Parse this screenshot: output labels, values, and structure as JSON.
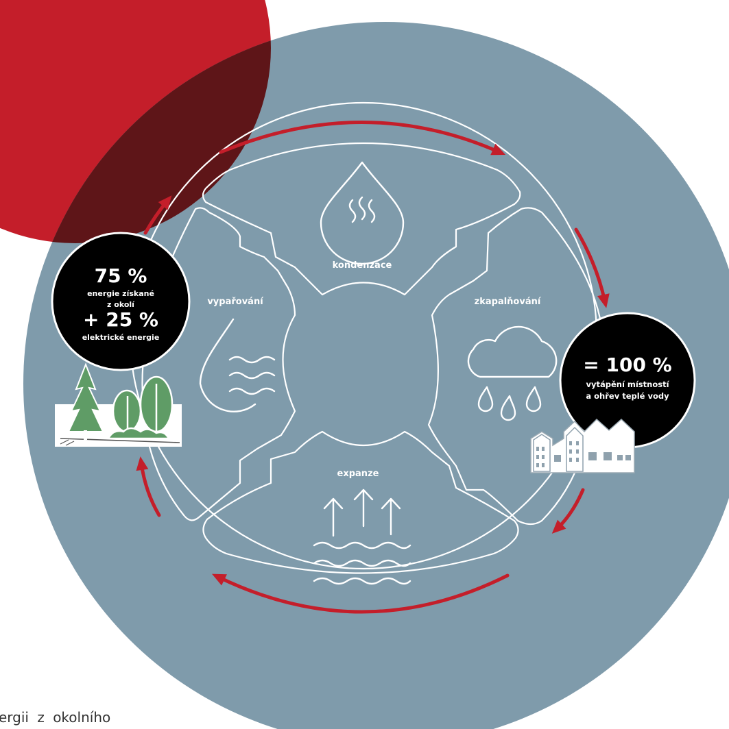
{
  "colors": {
    "circle_background": "#7f9bab",
    "accent_red": "#c41e2a",
    "dark_red": "#5e1518",
    "black_badge": "#000000",
    "tree_green": "#5f9c66"
  },
  "stages": {
    "kondenzace": "kondenzace",
    "zkapalnovani": "zkapalňování",
    "expanze": "expanze",
    "vyparovani": "vypařování"
  },
  "left_badge": {
    "line1": "75 %",
    "line2": "energie získané",
    "line3": "z okolí",
    "line4": "+ 25 %",
    "line5": "elektrické energie"
  },
  "right_badge": {
    "line1": "= 100 %",
    "line2": "vytápění místností",
    "line3": "a ohřev teplé vody"
  },
  "page_text": {
    "bottom_fragment": "ergii z okolního"
  },
  "icons": {
    "kondenzace": "water-drop-with-steam-icon",
    "zkapalnovani": "rain-cloud-icon",
    "expanze": "rising-arrows-over-waves-icon",
    "vyparovani": "water-drop-with-waves-icon",
    "nature": "trees-icon",
    "city": "houses-icon"
  }
}
